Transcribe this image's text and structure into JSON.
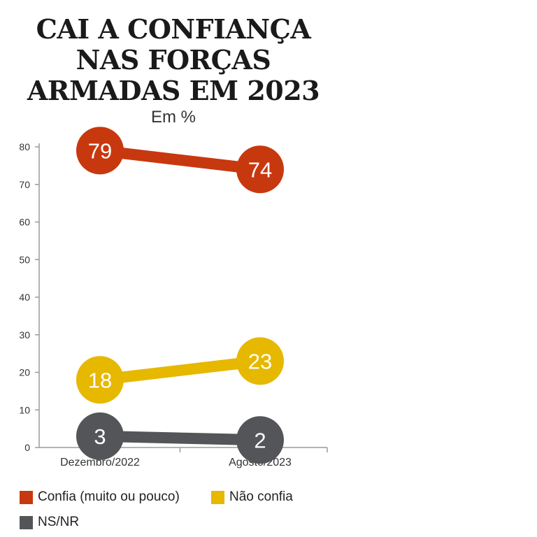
{
  "title_lines": [
    "CAI A CONFIANÇA",
    "NAS FORÇAS",
    "ARMADAS EM 2023"
  ],
  "subtitle": "Em %",
  "colors": {
    "axis": "#9a9a9a",
    "tick_text": "#333333"
  },
  "chart_data": {
    "type": "line",
    "title": "CAI A CONFIANÇA NAS FORÇAS ARMADAS EM 2023",
    "subtitle": "Em %",
    "categories": [
      "Dezembro/2022",
      "Agosto/2023"
    ],
    "yticks": [
      0,
      10,
      20,
      30,
      40,
      50,
      60,
      70,
      80
    ],
    "ylim": [
      0,
      80
    ],
    "grid": false,
    "series": [
      {
        "name": "Confia (muito ou pouco)",
        "values": [
          79,
          74
        ],
        "color": "#c8380e"
      },
      {
        "name": "Não confia",
        "values": [
          18,
          23
        ],
        "color": "#e6b800"
      },
      {
        "name": "NS/NR",
        "values": [
          3,
          2
        ],
        "color": "#545558"
      }
    ],
    "legend_position": "bottom-left"
  }
}
